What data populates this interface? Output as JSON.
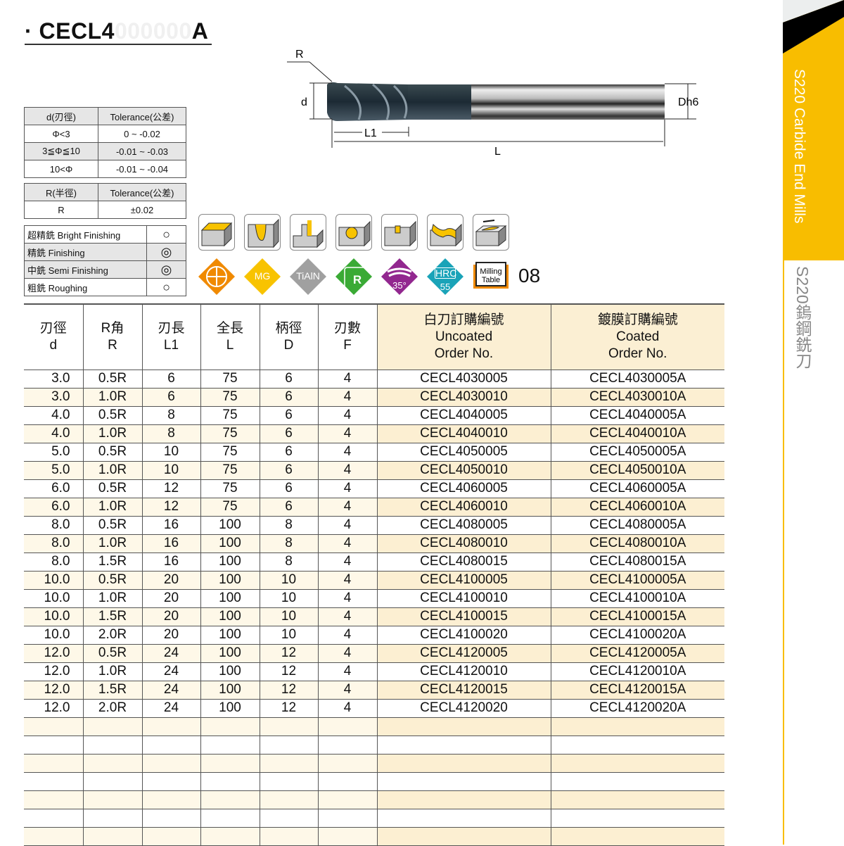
{
  "title": {
    "bullet": "·",
    "prefix": "CECL4",
    "ghost": "000000",
    "suffix": "A"
  },
  "drawing": {
    "labels": {
      "R": "R",
      "d": "d",
      "L1": "L1",
      "L": "L",
      "Dh6": "Dh6"
    }
  },
  "diameter_tolerance": {
    "headers": [
      "d(刃徑)",
      "Tolerance(公差)"
    ],
    "rows": [
      [
        "Φ<3",
        "0 ~ -0.02"
      ],
      [
        "3≦Φ≦10",
        "-0.01 ~ -0.03"
      ],
      [
        "10<Φ",
        "-0.01 ~ -0.04"
      ]
    ]
  },
  "radius_tolerance": {
    "headers": [
      "R(半徑)",
      "Tolerance(公差)"
    ],
    "rows": [
      [
        "R",
        "±0.02"
      ]
    ]
  },
  "finishing": [
    {
      "label": "超精銑 Bright Finishing",
      "mark": "○"
    },
    {
      "label": "精銑 Finishing",
      "mark": "◎"
    },
    {
      "label": "中銑 Semi Finishing",
      "mark": "◎"
    },
    {
      "label": "粗銑 Roughing",
      "mark": "○"
    }
  ],
  "application_icons": [
    "face-milling-icon",
    "slotting-icon",
    "shoulder-milling-icon",
    "helical-interpolation-icon",
    "plunging-icon",
    "contour-milling-icon",
    "ramping-icon"
  ],
  "feature_badges": [
    {
      "icon": "four-flute-icon",
      "text": "",
      "color": "#f08a00"
    },
    {
      "icon": "mg-grade-icon",
      "text": "MG",
      "color": "#f8c300"
    },
    {
      "icon": "tialn-coating-icon",
      "text": "TiAlN",
      "color": "#a0a0a0"
    },
    {
      "icon": "corner-radius-icon",
      "text": "R",
      "color": "#3aaa35"
    },
    {
      "icon": "helix-angle-icon",
      "text": "35°",
      "color": "#92278f"
    },
    {
      "icon": "hrc-icon",
      "text": "HRC",
      "text2": "55",
      "color": "#1aa3b8"
    }
  ],
  "milling_table": {
    "line1": "Milling",
    "line2": "Table",
    "page": "08"
  },
  "sidebar": {
    "en": "S220 Carbide End Mills",
    "zh": "S220鎢鋼銑刀",
    "accent": "#f8bd00"
  },
  "table": {
    "headers": [
      [
        "刃徑",
        "d"
      ],
      [
        "R角",
        "R"
      ],
      [
        "刃長",
        "L1"
      ],
      [
        "全長",
        "L"
      ],
      [
        "柄徑",
        "D"
      ],
      [
        "刃數",
        "F"
      ],
      [
        "白刀訂購編號",
        "Uncoated",
        "Order No."
      ],
      [
        "鍍膜訂購編號",
        "Coated",
        "Order No."
      ]
    ],
    "rows": [
      [
        "3.0",
        "0.5R",
        "6",
        "75",
        "6",
        "4",
        "CECL4030005",
        "CECL4030005A"
      ],
      [
        "3.0",
        "1.0R",
        "6",
        "75",
        "6",
        "4",
        "CECL4030010",
        "CECL4030010A"
      ],
      [
        "4.0",
        "0.5R",
        "8",
        "75",
        "6",
        "4",
        "CECL4040005",
        "CECL4040005A"
      ],
      [
        "4.0",
        "1.0R",
        "8",
        "75",
        "6",
        "4",
        "CECL4040010",
        "CECL4040010A"
      ],
      [
        "5.0",
        "0.5R",
        "10",
        "75",
        "6",
        "4",
        "CECL4050005",
        "CECL4050005A"
      ],
      [
        "5.0",
        "1.0R",
        "10",
        "75",
        "6",
        "4",
        "CECL4050010",
        "CECL4050010A"
      ],
      [
        "6.0",
        "0.5R",
        "12",
        "75",
        "6",
        "4",
        "CECL4060005",
        "CECL4060005A"
      ],
      [
        "6.0",
        "1.0R",
        "12",
        "75",
        "6",
        "4",
        "CECL4060010",
        "CECL4060010A"
      ],
      [
        "8.0",
        "0.5R",
        "16",
        "100",
        "8",
        "4",
        "CECL4080005",
        "CECL4080005A"
      ],
      [
        "8.0",
        "1.0R",
        "16",
        "100",
        "8",
        "4",
        "CECL4080010",
        "CECL4080010A"
      ],
      [
        "8.0",
        "1.5R",
        "16",
        "100",
        "8",
        "4",
        "CECL4080015",
        "CECL4080015A"
      ],
      [
        "10.0",
        "0.5R",
        "20",
        "100",
        "10",
        "4",
        "CECL4100005",
        "CECL4100005A"
      ],
      [
        "10.0",
        "1.0R",
        "20",
        "100",
        "10",
        "4",
        "CECL4100010",
        "CECL4100010A"
      ],
      [
        "10.0",
        "1.5R",
        "20",
        "100",
        "10",
        "4",
        "CECL4100015",
        "CECL4100015A"
      ],
      [
        "10.0",
        "2.0R",
        "20",
        "100",
        "10",
        "4",
        "CECL4100020",
        "CECL4100020A"
      ],
      [
        "12.0",
        "0.5R",
        "24",
        "100",
        "12",
        "4",
        "CECL4120005",
        "CECL4120005A"
      ],
      [
        "12.0",
        "1.0R",
        "24",
        "100",
        "12",
        "4",
        "CECL4120010",
        "CECL4120010A"
      ],
      [
        "12.0",
        "1.5R",
        "24",
        "100",
        "12",
        "4",
        "CECL4120015",
        "CECL4120015A"
      ],
      [
        "12.0",
        "2.0R",
        "24",
        "100",
        "12",
        "4",
        "CECL4120020",
        "CECL4120020A"
      ]
    ]
  }
}
